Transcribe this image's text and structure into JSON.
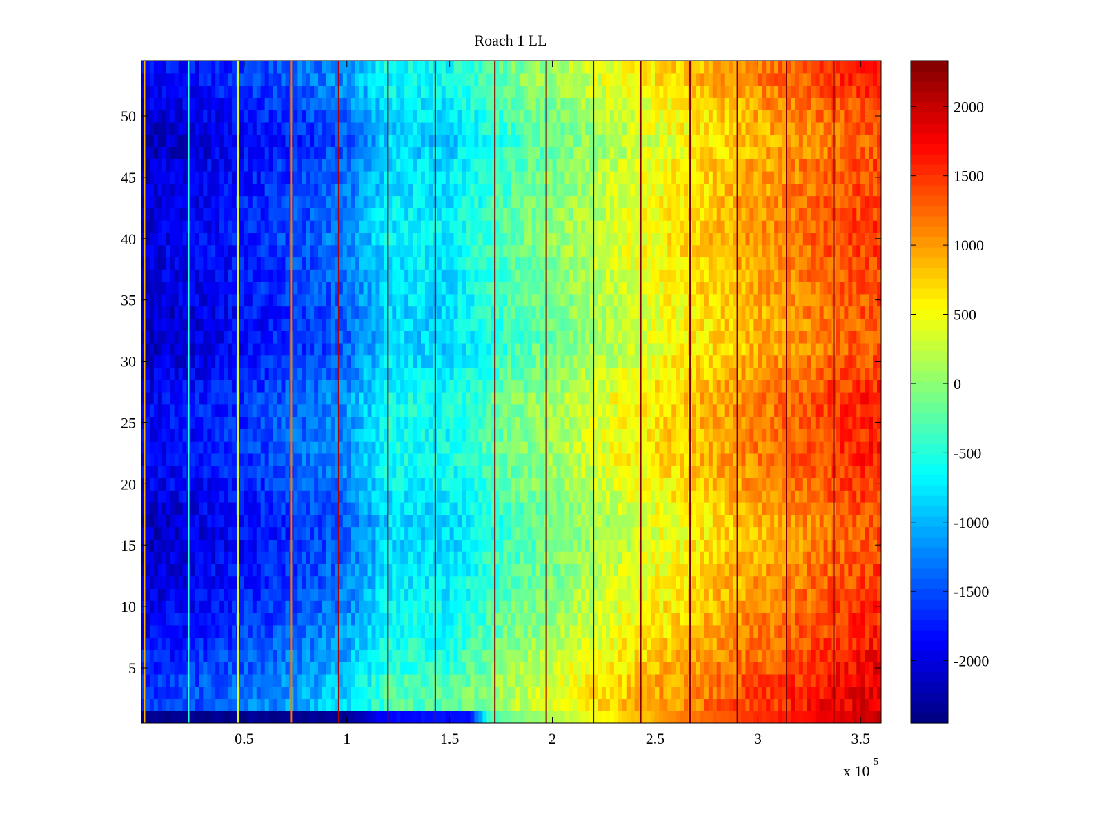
{
  "chart_data": {
    "type": "heatmap",
    "title": "Roach 1 LL",
    "xlabel": "",
    "ylabel": "",
    "x_exponent_label": {
      "base": "x 10",
      "exponent": "5"
    },
    "xlim": [
      0,
      360000
    ],
    "ylim": [
      0.5,
      54.5
    ],
    "x_ticks": [
      {
        "value": 50000,
        "label": "0.5"
      },
      {
        "value": 100000,
        "label": "1"
      },
      {
        "value": 150000,
        "label": "1.5"
      },
      {
        "value": 200000,
        "label": "2"
      },
      {
        "value": 250000,
        "label": "2.5"
      },
      {
        "value": 300000,
        "label": "3"
      },
      {
        "value": 350000,
        "label": "3.5"
      }
    ],
    "y_ticks": [
      {
        "value": 5,
        "label": "5"
      },
      {
        "value": 10,
        "label": "10"
      },
      {
        "value": 15,
        "label": "15"
      },
      {
        "value": 20,
        "label": "20"
      },
      {
        "value": 25,
        "label": "25"
      },
      {
        "value": 30,
        "label": "30"
      },
      {
        "value": 35,
        "label": "35"
      },
      {
        "value": 40,
        "label": "40"
      },
      {
        "value": 45,
        "label": "45"
      },
      {
        "value": 50,
        "label": "50"
      }
    ],
    "colorbar": {
      "colormap": "jet",
      "range": [
        -2450,
        2330
      ],
      "ticks": [
        {
          "value": 2000,
          "label": "2000"
        },
        {
          "value": 1500,
          "label": "1500"
        },
        {
          "value": 1000,
          "label": "1000"
        },
        {
          "value": 500,
          "label": "500"
        },
        {
          "value": 0,
          "label": "0"
        },
        {
          "value": -500,
          "label": "-500"
        },
        {
          "value": -1000,
          "label": "-1000"
        },
        {
          "value": -1500,
          "label": "-1500"
        },
        {
          "value": -2000,
          "label": "-2000"
        }
      ]
    },
    "column_profile": {
      "x": [
        0,
        20000,
        50000,
        80000,
        100000,
        120000,
        150000,
        180000,
        200000,
        230000,
        260000,
        290000,
        320000,
        340000,
        360000
      ],
      "value": [
        -1900,
        -1800,
        -1600,
        -1350,
        -1150,
        -600,
        -600,
        -100,
        100,
        450,
        750,
        1050,
        1300,
        1500,
        1600
      ]
    },
    "row_offsets": {
      "rows": [
        1,
        2,
        3,
        8,
        15,
        17,
        22,
        27,
        31,
        33,
        40,
        46,
        48,
        50,
        53
      ],
      "offset": [
        0,
        300,
        300,
        0,
        -250,
        -250,
        0,
        0,
        -250,
        -250,
        -100,
        -200,
        -300,
        -200,
        0
      ]
    },
    "bottom_row": {
      "row": 1,
      "x": [
        0,
        100000,
        120000,
        160000,
        170000,
        200000,
        260000,
        320000,
        360000
      ],
      "value": [
        -2400,
        -2350,
        -1800,
        -1800,
        -300,
        150,
        1100,
        1700,
        2000
      ]
    },
    "vertical_stripes": [
      {
        "x": 1500,
        "value": 900
      },
      {
        "x": 23000,
        "value": -500
      },
      {
        "x": 47000,
        "value": 400
      },
      {
        "x": 73000,
        "value": 1200
      },
      {
        "x": 96000,
        "value": 2100
      },
      {
        "x": 120000,
        "value": 2200
      },
      {
        "x": 143000,
        "value": 2200
      },
      {
        "x": 172000,
        "value": 2200
      },
      {
        "x": 197000,
        "value": 2300
      },
      {
        "x": 220000,
        "value": 2300
      },
      {
        "x": 243000,
        "value": 2300
      },
      {
        "x": 267000,
        "value": 2300
      },
      {
        "x": 290000,
        "value": 2300
      },
      {
        "x": 314000,
        "value": 2300
      },
      {
        "x": 337000,
        "value": 2300
      }
    ]
  }
}
